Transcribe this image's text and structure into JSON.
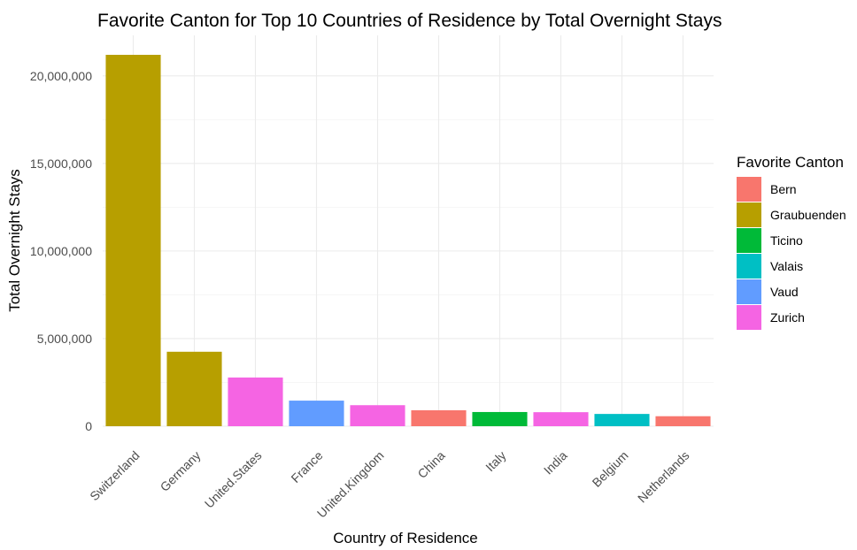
{
  "chart_data": {
    "type": "bar",
    "title": "Favorite Canton for Top 10 Countries of Residence by Total Overnight Stays",
    "xlabel": "Country of Residence",
    "ylabel": "Total Overnight Stays",
    "categories": [
      "Switzerland",
      "Germany",
      "United.States",
      "France",
      "United.Kingdom",
      "China",
      "Italy",
      "India",
      "Belgium",
      "Netherlands"
    ],
    "values": [
      21200000,
      4250000,
      2780000,
      1460000,
      1200000,
      910000,
      810000,
      800000,
      700000,
      570000
    ],
    "bar_canton": [
      "Graubuenden",
      "Graubuenden",
      "Zurich",
      "Vaud",
      "Zurich",
      "Bern",
      "Ticino",
      "Zurich",
      "Valais",
      "Bern"
    ],
    "ylim": [
      0,
      22000000
    ],
    "yticks": [
      0,
      5000000,
      10000000,
      15000000,
      20000000
    ],
    "ytick_labels": [
      "0",
      "5,000,000",
      "10,000,000",
      "15,000,000",
      "20,000,000"
    ],
    "grid": true,
    "legend": {
      "title": "Favorite Canton",
      "placement": "right",
      "entries": [
        {
          "label": "Bern",
          "color": "#F8766D"
        },
        {
          "label": "Graubuenden",
          "color": "#B79F00"
        },
        {
          "label": "Ticino",
          "color": "#00BA38"
        },
        {
          "label": "Valais",
          "color": "#00BFC4"
        },
        {
          "label": "Vaud",
          "color": "#619CFF"
        },
        {
          "label": "Zurich",
          "color": "#F564E3"
        }
      ]
    }
  }
}
